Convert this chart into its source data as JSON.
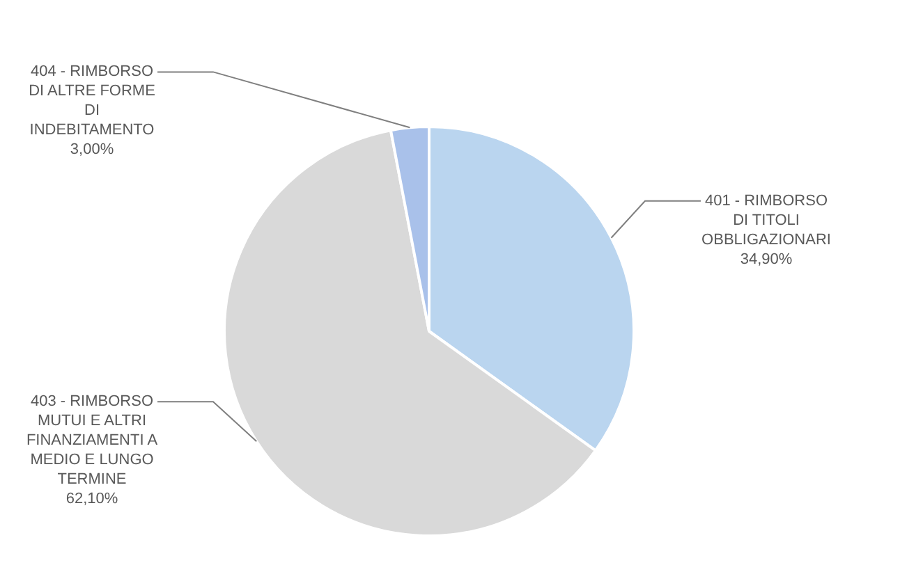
{
  "chart_data": {
    "type": "pie",
    "categories": [
      "401 - RIMBORSO DI TITOLI OBBLIGAZIONARI",
      "403 - RIMBORSO MUTUI E ALTRI FINANZIAMENTI A MEDIO E LUNGO TERMINE",
      "404 - RIMBORSO DI ALTRE FORME DI INDEBITAMENTO"
    ],
    "values": [
      34.9,
      62.1,
      3.0
    ],
    "colors": [
      "#bad5ef",
      "#d9d9d9",
      "#a9c1ea"
    ],
    "value_labels": [
      "34,90%",
      "62,10%",
      "3,00%"
    ],
    "legend": false
  }
}
